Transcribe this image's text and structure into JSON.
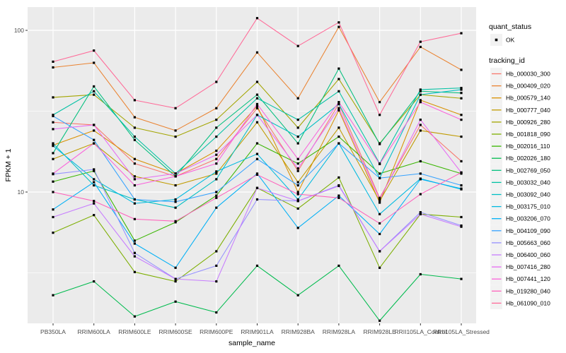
{
  "figure": {
    "y_axis": {
      "label": "FPKM + 1",
      "tick_labels": [
        "100",
        "10"
      ]
    },
    "x_axis": {
      "label": "sample_name"
    },
    "legend": {
      "quant_status_title": "quant_status",
      "quant_status_ok_label": "OK",
      "tracking_id_title": "tracking_id"
    }
  },
  "colors": {
    "panel_bg": "#EBEBEB",
    "grid": "#FFFFFF",
    "legend_key_bg": "#F2F2F2",
    "tick_mark": "#333333",
    "tick_text": "#4D4D4D",
    "point": "#000000"
  },
  "chart_data": {
    "type": "line",
    "title": "",
    "xlabel": "sample_name",
    "ylabel": "FPKM + 1",
    "y_scale": "log10",
    "ylim": [
      1.5,
      140
    ],
    "grid": true,
    "legend_position": "right",
    "y_major_ticks": [
      100,
      10
    ],
    "y_minor_gridlines": [
      31.6,
      3.16
    ],
    "point_marker": "black-square",
    "quant_status": "OK",
    "categories": [
      "PB350LA",
      "RRIM600LA",
      "RRIM600LE",
      "RRIM600SE",
      "RRIM600PE",
      "RRIM901LA",
      "RRIM928BA",
      "RRIM928LA",
      "RRIM928LE",
      "RRII105LA_Control",
      "RRII105LA_Stressed"
    ],
    "series": [
      {
        "name": "Hb_000030_300",
        "color": "#F8766D",
        "values": [
          27,
          26,
          15,
          12.5,
          16,
          33,
          13.5,
          35,
          9.2,
          26,
          15.5
        ]
      },
      {
        "name": "Hb_000409_020",
        "color": "#EA8331",
        "values": [
          59,
          63,
          29,
          24,
          33,
          73,
          38,
          105,
          36,
          79,
          57
        ]
      },
      {
        "name": "Hb_000579_140",
        "color": "#D89000",
        "values": [
          19.5,
          24,
          16,
          13,
          18,
          34,
          10,
          32,
          8.6,
          37,
          30
        ]
      },
      {
        "name": "Hb_000777_040",
        "color": "#C09B00",
        "values": [
          16,
          20,
          12.5,
          11,
          13,
          27,
          11.5,
          25,
          8.8,
          24,
          22
        ]
      },
      {
        "name": "Hb_000926_280",
        "color": "#A3A500",
        "values": [
          38.5,
          40,
          25,
          22,
          28,
          48,
          25,
          50,
          20,
          40,
          38
        ]
      },
      {
        "name": "Hb_001818_090",
        "color": "#7CAE00",
        "values": [
          5.6,
          7.2,
          3.2,
          2.8,
          4.3,
          10.6,
          7.9,
          12.3,
          3.4,
          7.3,
          7.0
        ]
      },
      {
        "name": "Hb_002016_110",
        "color": "#39B600",
        "values": [
          11.6,
          13.5,
          5.0,
          6.5,
          9.5,
          20,
          15,
          22,
          13,
          15.5,
          13
        ]
      },
      {
        "name": "Hb_002026_180",
        "color": "#00BB4E",
        "values": [
          2.3,
          2.8,
          1.7,
          2.1,
          1.8,
          3.5,
          2.3,
          3.5,
          1.6,
          3.1,
          2.9
        ]
      },
      {
        "name": "Hb_002769_050",
        "color": "#00BF7D",
        "values": [
          17.4,
          45,
          21,
          12.5,
          25,
          40,
          20,
          58,
          19.8,
          42,
          41
        ]
      },
      {
        "name": "Hb_003032_040",
        "color": "#00C1A3",
        "values": [
          30,
          42,
          22,
          13,
          22,
          38,
          28,
          42,
          15,
          43,
          44
        ]
      },
      {
        "name": "Hb_003092_040",
        "color": "#00BFC4",
        "values": [
          20,
          11,
          9,
          8,
          12,
          30,
          22,
          35,
          12.2,
          40,
          43
        ]
      },
      {
        "name": "Hb_003175_010",
        "color": "#00BAE0",
        "values": [
          19.3,
          12,
          8.5,
          9,
          13.4,
          17.2,
          9,
          20,
          7.3,
          12.1,
          10.4
        ]
      },
      {
        "name": "Hb_003206_070",
        "color": "#00B0F6",
        "values": [
          7.8,
          11.5,
          4.8,
          3.4,
          8,
          13,
          6,
          9.5,
          5.5,
          12,
          10.5
        ]
      },
      {
        "name": "Hb_004109_090",
        "color": "#35A2FF",
        "values": [
          29.5,
          21,
          9,
          8.7,
          10,
          16,
          11,
          20,
          12.2,
          13,
          11
        ]
      },
      {
        "name": "Hb_005663_060",
        "color": "#9590FF",
        "values": [
          12.9,
          13.8,
          4.2,
          2.9,
          3.5,
          9,
          8.8,
          11,
          4.3,
          7.5,
          6.2
        ]
      },
      {
        "name": "Hb_006400_060",
        "color": "#C77CFF",
        "values": [
          7.0,
          8.5,
          4.0,
          2.9,
          2.8,
          10.6,
          8.8,
          10.9,
          4.3,
          7.3,
          6.1
        ]
      },
      {
        "name": "Hb_007416_280",
        "color": "#E76BF3",
        "values": [
          24.5,
          26,
          12,
          13,
          17,
          30,
          14,
          33,
          9,
          28,
          13.2
        ]
      },
      {
        "name": "Hb_007441_120",
        "color": "#FA62DB",
        "values": [
          13,
          20,
          11,
          12.5,
          15,
          35,
          16,
          36,
          14.9,
          36,
          28
        ]
      },
      {
        "name": "Hb_019280_040",
        "color": "#FF62BC",
        "values": [
          10,
          8.8,
          6.8,
          6.6,
          9.2,
          12.8,
          9.7,
          9.2,
          6.4,
          9.7,
          13.2
        ]
      },
      {
        "name": "Hb_061090_010",
        "color": "#FF6A98",
        "values": [
          64,
          75,
          37,
          33,
          48,
          119,
          80,
          112,
          30,
          85,
          96
        ]
      }
    ]
  }
}
